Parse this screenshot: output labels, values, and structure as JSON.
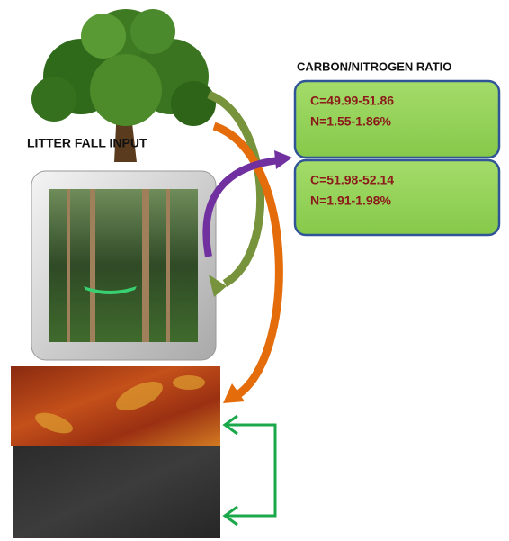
{
  "ratio_title": "CARBON/NITROGEN RATIO",
  "input_label": "LITTER FALL INPUT",
  "boxes": [
    {
      "lines": [
        "C=49.99-51.86",
        "N=1.55-1.86%"
      ]
    },
    {
      "lines": [
        "C=51.98-52.14",
        "N=1.91-1.98%"
      ]
    }
  ]
}
